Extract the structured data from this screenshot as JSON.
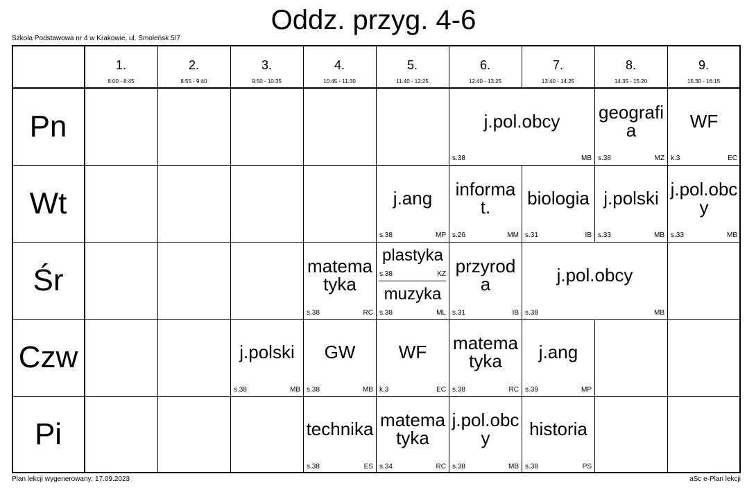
{
  "header": {
    "title": "Oddz. przyg. 4-6",
    "school": "Szkoła Podstawowa nr 4 w Krakowie, ul. Smoleńsk 5/7"
  },
  "footer": {
    "left": "Plan lekcji wygenerowany: 17.09.2023",
    "right": "aSc e-Plan lekcji"
  },
  "periods": [
    {
      "number": "1.",
      "time": "8:00 - 8:45"
    },
    {
      "number": "2.",
      "time": "8:55 - 9:40"
    },
    {
      "number": "3.",
      "time": "9:50 - 10:35"
    },
    {
      "number": "4.",
      "time": "10:45 - 11:30"
    },
    {
      "number": "5.",
      "time": "11:40 - 12:25"
    },
    {
      "number": "6.",
      "time": "12:40 - 13:25"
    },
    {
      "number": "7.",
      "time": "13:40 - 14:25"
    },
    {
      "number": "8.",
      "time": "14:35 - 15:20"
    },
    {
      "number": "9.",
      "time": "15:30 - 16:15"
    }
  ],
  "rows": [
    {
      "day": "Pn",
      "cells": [
        null,
        null,
        null,
        null,
        null,
        {
          "subject": "j.pol.obcy",
          "room": "s.38",
          "teacher": "MB",
          "span": 2
        },
        {
          "subject": "geografia",
          "room": "s.38",
          "teacher": "MZ"
        },
        {
          "subject": "WF",
          "room": "k.3",
          "teacher": "EC"
        }
      ]
    },
    {
      "day": "Wt",
      "cells": [
        null,
        null,
        null,
        null,
        {
          "subject": "j.ang",
          "room": "s.38",
          "teacher": "MP"
        },
        {
          "subject": "informat.",
          "room": "s.26",
          "teacher": "MM"
        },
        {
          "subject": "biologia",
          "room": "s.31",
          "teacher": "IB"
        },
        {
          "subject": "j.polski",
          "room": "s.33",
          "teacher": "MB"
        },
        {
          "subject": "j.pol.obcy",
          "room": "s.33",
          "teacher": "MB"
        }
      ]
    },
    {
      "day": "Śr",
      "cells": [
        null,
        null,
        null,
        {
          "subject": "matematyka",
          "room": "s.38",
          "teacher": "RC"
        },
        {
          "groups": [
            {
              "subject": "plastyka",
              "room": "s.38",
              "teacher": "KZ"
            },
            {
              "subject": "muzyka",
              "room": "s.38",
              "teacher": "ML"
            }
          ]
        },
        {
          "subject": "przyroda",
          "room": "s.31",
          "teacher": "IB"
        },
        {
          "subject": "j.pol.obcy",
          "room": "s.38",
          "teacher": "MB",
          "span": 2
        },
        null
      ]
    },
    {
      "day": "Czw",
      "cells": [
        null,
        null,
        {
          "subject": "j.polski",
          "room": "s.38",
          "teacher": "MB"
        },
        {
          "subject": "GW",
          "room": "s.38",
          "teacher": "MB"
        },
        {
          "subject": "WF",
          "room": "k.3",
          "teacher": "EC"
        },
        {
          "subject": "matematyka",
          "room": "s.38",
          "teacher": "RC"
        },
        {
          "subject": "j.ang",
          "room": "s.39",
          "teacher": "MP"
        },
        null,
        null
      ]
    },
    {
      "day": "Pi",
      "cells": [
        null,
        null,
        null,
        {
          "subject": "technika",
          "room": "s.38",
          "teacher": "ES"
        },
        {
          "subject": "matematyka",
          "room": "s.34",
          "teacher": "RC"
        },
        {
          "subject": "j.pol.obcy",
          "room": "s.38",
          "teacher": "MB"
        },
        {
          "subject": "historia",
          "room": "s.38",
          "teacher": "PS"
        },
        null,
        null
      ]
    }
  ]
}
